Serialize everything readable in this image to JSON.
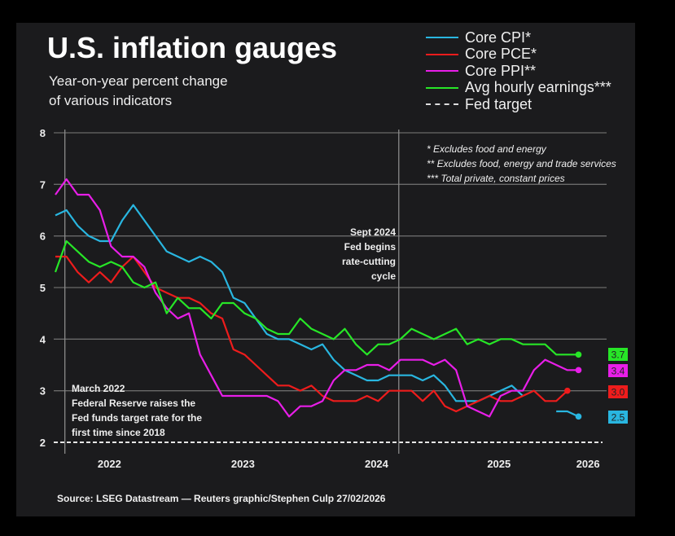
{
  "header": {
    "title": "U.S. inflation gauges",
    "subtitle_line1": "Year-on-year percent change",
    "subtitle_line2": "of various indicators"
  },
  "legend": [
    {
      "label": "Core CPI*",
      "color": "#29b6e0",
      "style": "solid"
    },
    {
      "label": "Core PCE*",
      "color": "#ee1c1c",
      "style": "solid"
    },
    {
      "label": "Core PPI**",
      "color": "#e81ee8",
      "style": "solid"
    },
    {
      "label": "Avg hourly earnings***",
      "color": "#27e627",
      "style": "solid"
    },
    {
      "label": "Fed target",
      "color": "#dddddd",
      "style": "dashed"
    }
  ],
  "notes": [
    "* Excludes food and energy",
    "** Excludes food, energy and trade services",
    "*** Total private, constant prices"
  ],
  "source": "Source: LSEG Datastream — Reuters graphic/Stephen Culp 27/02/2026",
  "chart_data": {
    "type": "line",
    "title": "U.S. inflation gauges",
    "subtitle": "Year-on-year percent change of various indicators",
    "xlabel": "",
    "ylabel": "",
    "ylim": [
      2,
      8
    ],
    "yticks": [
      2,
      3,
      4,
      5,
      6,
      7,
      8
    ],
    "xticks": [
      "2022",
      "2023",
      "2024",
      "2025",
      "2026"
    ],
    "grid": true,
    "legend_position": "top-right",
    "x_start": "2022-02",
    "x_end": "2026-01",
    "reference_lines": [
      {
        "type": "horizontal",
        "value": 2,
        "label": "Fed target",
        "style": "dashed"
      },
      {
        "type": "vertical",
        "at": "2022-03",
        "annotation": [
          "March 2022",
          "Federal Reserve raises the",
          "Fed funds target rate for the",
          "first time since 2018"
        ]
      },
      {
        "type": "vertical",
        "at": "2024-09",
        "annotation": [
          "Sept 2024",
          "Fed begins",
          "rate-cutting",
          "cycle"
        ]
      }
    ],
    "series": [
      {
        "name": "Core CPI*",
        "color": "#29b6e0",
        "latest_label": "2.5",
        "values": [
          6.4,
          6.5,
          6.2,
          6.0,
          5.9,
          5.9,
          6.3,
          6.6,
          6.3,
          6.0,
          5.7,
          5.6,
          5.5,
          5.6,
          5.5,
          5.3,
          4.8,
          4.7,
          4.4,
          4.1,
          4.0,
          4.0,
          3.9,
          3.8,
          3.9,
          3.6,
          3.4,
          3.3,
          3.2,
          3.2,
          3.3,
          3.3,
          3.3,
          3.2,
          3.3,
          3.1,
          2.8,
          2.8,
          2.8,
          2.9,
          3.0,
          3.1,
          2.9,
          null,
          null,
          2.6,
          2.6,
          2.5
        ]
      },
      {
        "name": "Core PCE*",
        "color": "#ee1c1c",
        "latest_label": "3.0",
        "values": [
          5.6,
          5.6,
          5.3,
          5.1,
          5.3,
          5.1,
          5.4,
          5.6,
          5.3,
          5.0,
          4.9,
          4.8,
          4.8,
          4.7,
          4.5,
          4.4,
          3.8,
          3.7,
          3.5,
          3.3,
          3.1,
          3.1,
          3.0,
          3.1,
          2.9,
          2.8,
          2.8,
          2.8,
          2.9,
          2.8,
          3.0,
          3.0,
          3.0,
          2.8,
          3.0,
          2.7,
          2.6,
          2.7,
          2.8,
          2.9,
          2.8,
          2.8,
          2.9,
          3.0,
          2.8,
          2.8,
          3.0,
          null
        ]
      },
      {
        "name": "Core PPI**",
        "color": "#e81ee8",
        "latest_label": "3.4",
        "values": [
          6.8,
          7.1,
          6.8,
          6.8,
          6.5,
          5.8,
          5.6,
          5.6,
          5.4,
          4.9,
          4.6,
          4.4,
          4.5,
          3.7,
          3.3,
          2.9,
          2.9,
          2.9,
          2.9,
          2.9,
          2.8,
          2.5,
          2.7,
          2.7,
          2.8,
          3.2,
          3.4,
          3.4,
          3.5,
          3.5,
          3.4,
          3.6,
          3.6,
          3.6,
          3.5,
          3.6,
          3.4,
          2.7,
          2.6,
          2.5,
          2.9,
          3.0,
          3.0,
          3.4,
          3.6,
          3.5,
          3.4,
          3.4
        ]
      },
      {
        "name": "Avg hourly earnings***",
        "color": "#27e627",
        "latest_label": "3.7",
        "values": [
          5.3,
          5.9,
          5.7,
          5.5,
          5.4,
          5.5,
          5.4,
          5.1,
          5.0,
          5.1,
          4.5,
          4.8,
          4.6,
          4.6,
          4.4,
          4.7,
          4.7,
          4.5,
          4.4,
          4.2,
          4.1,
          4.1,
          4.4,
          4.2,
          4.1,
          4.0,
          4.2,
          3.9,
          3.7,
          3.9,
          3.9,
          4.0,
          4.2,
          4.1,
          4.0,
          4.1,
          4.2,
          3.9,
          4.0,
          3.9,
          4.0,
          4.0,
          3.9,
          3.9,
          3.9,
          3.7,
          3.7,
          3.7
        ]
      }
    ]
  }
}
